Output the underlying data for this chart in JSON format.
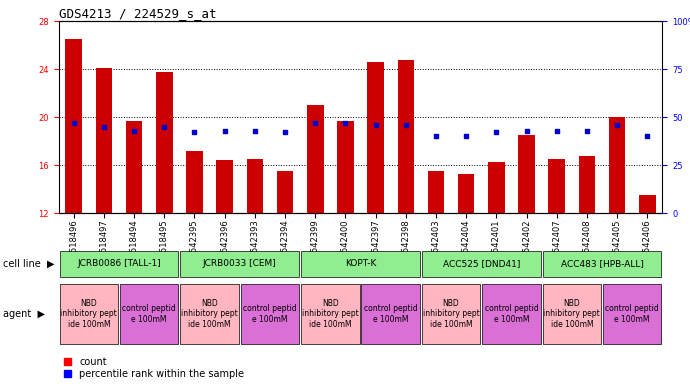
{
  "title": "GDS4213 / 224529_s_at",
  "samples": [
    "GSM518496",
    "GSM518497",
    "GSM518494",
    "GSM518495",
    "GSM542395",
    "GSM542396",
    "GSM542393",
    "GSM542394",
    "GSM542399",
    "GSM542400",
    "GSM542397",
    "GSM542398",
    "GSM542403",
    "GSM542404",
    "GSM542401",
    "GSM542402",
    "GSM542407",
    "GSM542408",
    "GSM542405",
    "GSM542406"
  ],
  "counts": [
    26.5,
    24.1,
    19.7,
    23.8,
    17.2,
    16.4,
    16.5,
    15.5,
    21.0,
    19.7,
    24.6,
    24.8,
    15.5,
    15.3,
    16.3,
    18.5,
    16.5,
    16.8,
    20.0,
    13.5
  ],
  "percentiles": [
    47,
    45,
    43,
    45,
    42,
    43,
    43,
    42,
    47,
    47,
    46,
    46,
    40,
    40,
    42,
    43,
    43,
    43,
    46,
    40
  ],
  "cell_lines": [
    {
      "label": "JCRB0086 [TALL-1]",
      "start": 0,
      "end": 4,
      "color": "#90ee90"
    },
    {
      "label": "JCRB0033 [CEM]",
      "start": 4,
      "end": 8,
      "color": "#90ee90"
    },
    {
      "label": "KOPT-K",
      "start": 8,
      "end": 12,
      "color": "#90ee90"
    },
    {
      "label": "ACC525 [DND41]",
      "start": 12,
      "end": 16,
      "color": "#90ee90"
    },
    {
      "label": "ACC483 [HPB-ALL]",
      "start": 16,
      "end": 20,
      "color": "#90ee90"
    }
  ],
  "agents": [
    {
      "label": "NBD\ninhibitory pept\nide 100mM",
      "start": 0,
      "end": 2,
      "color": "#ffb6c1"
    },
    {
      "label": "control peptid\ne 100mM",
      "start": 2,
      "end": 4,
      "color": "#da70d6"
    },
    {
      "label": "NBD\ninhibitory pept\nide 100mM",
      "start": 4,
      "end": 6,
      "color": "#ffb6c1"
    },
    {
      "label": "control peptid\ne 100mM",
      "start": 6,
      "end": 8,
      "color": "#da70d6"
    },
    {
      "label": "NBD\ninhibitory pept\nide 100mM",
      "start": 8,
      "end": 10,
      "color": "#ffb6c1"
    },
    {
      "label": "control peptid\ne 100mM",
      "start": 10,
      "end": 12,
      "color": "#da70d6"
    },
    {
      "label": "NBD\ninhibitory pept\nide 100mM",
      "start": 12,
      "end": 14,
      "color": "#ffb6c1"
    },
    {
      "label": "control peptid\ne 100mM",
      "start": 14,
      "end": 16,
      "color": "#da70d6"
    },
    {
      "label": "NBD\ninhibitory pept\nide 100mM",
      "start": 16,
      "end": 18,
      "color": "#ffb6c1"
    },
    {
      "label": "control peptid\ne 100mM",
      "start": 18,
      "end": 20,
      "color": "#da70d6"
    }
  ],
  "ylim_left": [
    12,
    28
  ],
  "yticks_left": [
    12,
    16,
    20,
    24,
    28
  ],
  "ylim_right": [
    0,
    100
  ],
  "yticks_right": [
    0,
    25,
    50,
    75,
    100
  ],
  "bar_color": "#cc0000",
  "dot_color": "#0000cc",
  "bar_width": 0.55,
  "bg_color": "#ffffff",
  "title_fontsize": 9,
  "tick_fontsize": 6,
  "legend_fontsize": 7,
  "label_fontsize": 7,
  "annot_fontsize": 6.5,
  "agent_fontsize": 5.5
}
